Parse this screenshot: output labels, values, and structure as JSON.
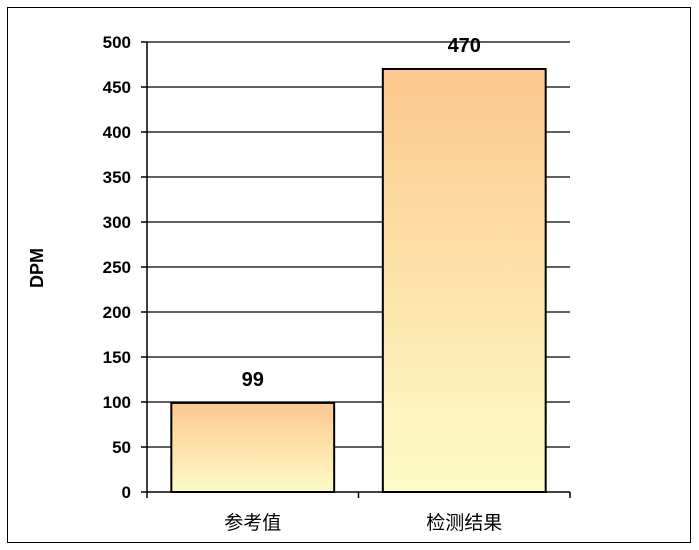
{
  "chart_data": {
    "type": "bar",
    "categories": [
      "参考值",
      "检测结果"
    ],
    "values": [
      99,
      470
    ],
    "data_labels": [
      "99",
      "470"
    ],
    "title": "",
    "xlabel": "",
    "ylabel": "DPM",
    "ylim": [
      0,
      500
    ],
    "yticks": [
      0,
      50,
      100,
      150,
      200,
      250,
      300,
      350,
      400,
      450,
      500
    ],
    "grid": true,
    "legend": "none",
    "bar_gradient_top": "#fcc88e",
    "bar_gradient_bottom": "#fefcc8",
    "bar_border": "#000000",
    "gridline_color": "#000000"
  }
}
